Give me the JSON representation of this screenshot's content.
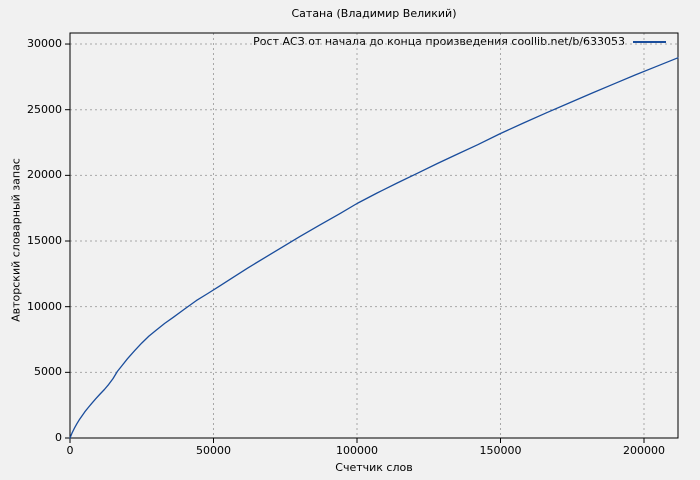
{
  "colors": {
    "background": "#f1f1f1",
    "line": "#1a4d9c",
    "grid": "#a8a8a8",
    "border": "#000000",
    "text": "#000000"
  },
  "chart_data": {
    "type": "line",
    "title": "Сатана (Владимир Великий)",
    "xlabel": "Счетчик слов",
    "ylabel": "Авторский словарный запас",
    "legend_label": "Рост АСЗ от начала до конца произведения coollib.net/b/633053",
    "legend_position": "top-right",
    "grid": true,
    "xlim": [
      0,
      211850
    ],
    "ylim": [
      0,
      30840
    ],
    "x_ticks": [
      0,
      50000,
      100000,
      150000,
      200000
    ],
    "y_ticks": [
      0,
      5000,
      10000,
      15000,
      20000,
      25000,
      30000
    ],
    "series": [
      {
        "name": "Рост АСЗ от начала до конца произведения coollib.net/b/633053",
        "color": "#1a4d9c",
        "points": [
          [
            0,
            0
          ],
          [
            800,
            430
          ],
          [
            1600,
            780
          ],
          [
            2400,
            1090
          ],
          [
            3200,
            1380
          ],
          [
            4200,
            1700
          ],
          [
            5200,
            2000
          ],
          [
            6400,
            2330
          ],
          [
            7600,
            2640
          ],
          [
            9000,
            2990
          ],
          [
            10500,
            3350
          ],
          [
            12000,
            3690
          ],
          [
            13500,
            4080
          ],
          [
            15000,
            4520
          ],
          [
            16500,
            5070
          ],
          [
            18000,
            5480
          ],
          [
            20000,
            6030
          ],
          [
            22500,
            6650
          ],
          [
            25000,
            7230
          ],
          [
            27500,
            7760
          ],
          [
            30000,
            8210
          ],
          [
            33000,
            8730
          ],
          [
            36000,
            9190
          ],
          [
            40000,
            9830
          ],
          [
            44000,
            10460
          ],
          [
            48000,
            11000
          ],
          [
            52000,
            11550
          ],
          [
            57000,
            12250
          ],
          [
            62000,
            12950
          ],
          [
            68000,
            13750
          ],
          [
            74000,
            14540
          ],
          [
            80000,
            15330
          ],
          [
            87000,
            16210
          ],
          [
            94000,
            17080
          ],
          [
            100000,
            17860
          ],
          [
            107000,
            18660
          ],
          [
            114000,
            19420
          ],
          [
            121000,
            20160
          ],
          [
            128000,
            20900
          ],
          [
            135000,
            21620
          ],
          [
            142000,
            22330
          ],
          [
            150000,
            23190
          ],
          [
            158000,
            23990
          ],
          [
            166000,
            24760
          ],
          [
            174000,
            25520
          ],
          [
            182000,
            26270
          ],
          [
            190000,
            27010
          ],
          [
            197000,
            27650
          ],
          [
            204000,
            28270
          ],
          [
            208000,
            28620
          ],
          [
            211800,
            28950
          ]
        ]
      }
    ]
  }
}
